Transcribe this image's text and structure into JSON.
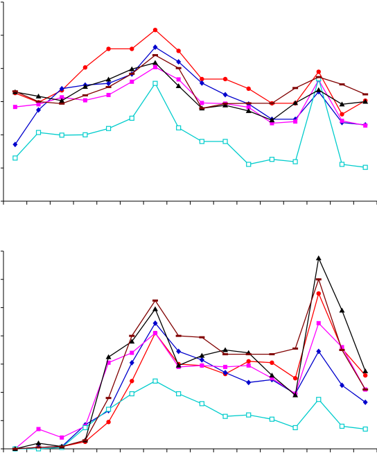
{
  "chart_data": [
    {
      "type": "line",
      "title": "",
      "xlabel": "",
      "ylabel": "",
      "x": [
        1,
        2,
        3,
        4,
        5,
        6,
        7,
        8,
        9,
        10,
        11,
        12,
        13,
        14,
        15,
        16
      ],
      "ylim": [
        0,
        6
      ],
      "grid": false,
      "series": [
        {
          "color": "#ff0000",
          "marker": "circle",
          "values": [
            3.26,
            2.98,
            3.34,
            4.03,
            4.59,
            4.59,
            5.16,
            4.53,
            3.68,
            3.68,
            3.39,
            2.95,
            2.95,
            3.9,
            2.62,
            3.03
          ]
        },
        {
          "color": "#0000cc",
          "marker": "diamond",
          "values": [
            1.71,
            2.75,
            3.39,
            3.5,
            3.55,
            3.83,
            4.64,
            4.2,
            3.56,
            3.21,
            2.93,
            2.47,
            2.47,
            3.3,
            2.37,
            2.3
          ]
        },
        {
          "color": "#ff00ff",
          "marker": "square",
          "values": [
            2.84,
            2.92,
            3.13,
            3.04,
            3.2,
            3.6,
            4.04,
            3.67,
            2.96,
            2.94,
            2.83,
            2.35,
            2.4,
            3.65,
            2.42,
            2.28
          ]
        },
        {
          "color": "#00cccc",
          "marker": "square-open",
          "values": [
            1.3,
            2.07,
            1.99,
            2.0,
            2.19,
            2.5,
            3.55,
            2.21,
            1.8,
            1.8,
            1.11,
            1.26,
            1.19,
            3.69,
            1.11,
            1.02
          ]
        },
        {
          "color": "#000000",
          "marker": "triangle",
          "values": [
            3.29,
            3.16,
            3.03,
            3.45,
            3.67,
            3.98,
            4.17,
            3.47,
            2.8,
            2.89,
            2.72,
            2.44,
            2.96,
            3.35,
            2.92,
            3.0
          ]
        },
        {
          "color": "#800000",
          "marker": "dash",
          "values": [
            3.31,
            3.0,
            2.94,
            3.19,
            3.44,
            3.84,
            4.4,
            4.01,
            2.8,
            2.94,
            2.95,
            2.95,
            3.41,
            3.74,
            3.52,
            3.22
          ]
        }
      ]
    },
    {
      "type": "line",
      "title": "",
      "xlabel": "",
      "ylabel": "",
      "x": [
        1,
        2,
        3,
        4,
        5,
        6,
        7,
        8,
        9,
        10,
        11,
        12,
        13,
        14,
        15,
        16
      ],
      "ylim": [
        0,
        7
      ],
      "grid": false,
      "series": [
        {
          "color": "#ff0000",
          "marker": "circle",
          "values": [
            0.0,
            0.05,
            0.08,
            0.25,
            0.95,
            2.4,
            4.1,
            3.0,
            2.95,
            2.65,
            3.1,
            3.05,
            2.5,
            5.5,
            3.55,
            2.6
          ]
        },
        {
          "color": "#0000cc",
          "marker": "diamond",
          "values": [
            0.0,
            0.05,
            0.08,
            0.85,
            1.35,
            3.05,
            4.45,
            3.45,
            3.15,
            2.7,
            2.35,
            2.45,
            1.95,
            3.45,
            2.25,
            1.65
          ]
        },
        {
          "color": "#ff00ff",
          "marker": "square",
          "values": [
            0.0,
            0.7,
            0.4,
            0.8,
            3.05,
            3.4,
            4.1,
            2.9,
            2.95,
            2.9,
            2.95,
            2.5,
            1.95,
            4.45,
            3.6,
            2.1
          ]
        },
        {
          "color": "#00cccc",
          "marker": "square-open",
          "values": [
            0.0,
            0.0,
            0.05,
            0.75,
            1.4,
            1.95,
            2.4,
            1.95,
            1.6,
            1.15,
            1.2,
            1.05,
            0.75,
            1.75,
            0.8,
            0.7
          ]
        },
        {
          "color": "#000000",
          "marker": "triangle",
          "values": [
            0.0,
            0.2,
            0.08,
            0.3,
            3.25,
            3.8,
            4.95,
            2.95,
            3.3,
            3.5,
            3.4,
            2.6,
            1.9,
            6.75,
            4.9,
            2.75
          ]
        },
        {
          "color": "#800000",
          "marker": "dash",
          "values": [
            0.0,
            0.05,
            0.08,
            0.3,
            1.8,
            4.0,
            5.25,
            4.0,
            3.95,
            3.35,
            3.35,
            3.35,
            3.55,
            6.0,
            3.5,
            2.1
          ]
        }
      ]
    }
  ]
}
